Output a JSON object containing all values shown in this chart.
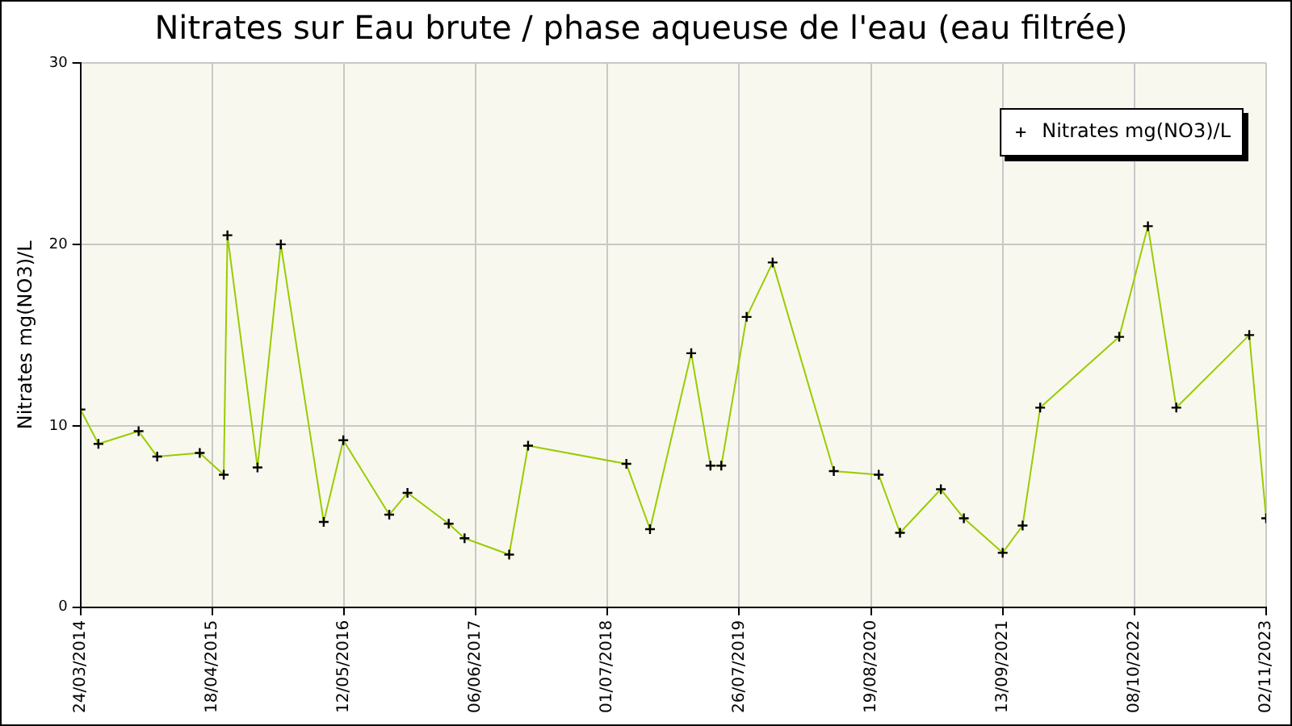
{
  "chart_data": {
    "type": "line",
    "title": "Nitrates sur Eau brute / phase aqueuse de l'eau (eau filtrée)",
    "ylabel": "Nitrates mg(NO3)/L",
    "x": [
      "2014-03-24",
      "2014-05-16",
      "2014-09-12",
      "2014-11-06",
      "2015-03-12",
      "2015-05-22",
      "2015-06-02",
      "2015-08-30",
      "2015-11-07",
      "2016-03-13",
      "2016-05-10",
      "2016-09-23",
      "2016-11-16",
      "2017-03-18",
      "2017-05-04",
      "2017-09-13",
      "2017-11-08",
      "2018-08-26",
      "2018-11-04",
      "2019-03-06",
      "2019-05-02",
      "2019-06-03",
      "2019-08-17",
      "2019-11-02",
      "2020-05-01",
      "2020-09-11",
      "2020-11-13",
      "2021-03-14",
      "2021-05-21",
      "2021-09-13",
      "2021-11-11",
      "2022-01-02",
      "2022-08-24",
      "2022-11-17",
      "2023-02-09",
      "2023-09-13",
      "2023-11-02"
    ],
    "series": [
      {
        "name": "Nitrates mg(NO3)/L",
        "color": "#99cc00",
        "values": [
          10.9,
          9.0,
          9.7,
          8.3,
          8.5,
          7.3,
          20.5,
          7.7,
          20.0,
          4.7,
          9.2,
          5.1,
          6.3,
          4.6,
          3.8,
          2.9,
          8.9,
          7.9,
          4.3,
          14.0,
          7.8,
          7.8,
          16.0,
          19.0,
          7.5,
          7.3,
          4.1,
          6.5,
          4.9,
          3.0,
          4.5,
          11.0,
          14.9,
          21.0,
          11.0,
          15.0,
          4.9
        ]
      }
    ],
    "xlim": [
      "2014-03-24",
      "2023-11-02"
    ],
    "xticks": [
      {
        "value": "2014-03-24",
        "label": "24/03/2014"
      },
      {
        "value": "2015-04-18",
        "label": "18/04/2015"
      },
      {
        "value": "2016-05-12",
        "label": "12/05/2016"
      },
      {
        "value": "2017-06-06",
        "label": "06/06/2017"
      },
      {
        "value": "2018-07-01",
        "label": "01/07/2018"
      },
      {
        "value": "2019-07-26",
        "label": "26/07/2019"
      },
      {
        "value": "2020-08-19",
        "label": "19/08/2020"
      },
      {
        "value": "2021-09-13",
        "label": "13/09/2021"
      },
      {
        "value": "2022-10-08",
        "label": "08/10/2022"
      },
      {
        "value": "2023-11-02",
        "label": "02/11/2023"
      }
    ],
    "ylim": [
      0,
      30
    ],
    "yticks": [
      0,
      10,
      20,
      30
    ],
    "grid": true,
    "legend": "top right",
    "marker": "cross",
    "line_style": "solid"
  }
}
